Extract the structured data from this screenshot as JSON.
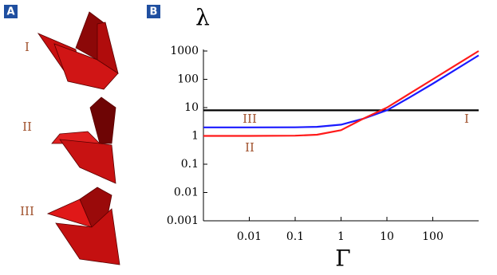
{
  "panels": [
    "A",
    "B"
  ],
  "shape_labels": [
    "I",
    "II",
    "III"
  ],
  "chart_data": {
    "type": "line",
    "xlabel": "Γ",
    "ylabel": "λ",
    "x_log": true,
    "y_log": true,
    "xlim": [
      0.001,
      1000
    ],
    "ylim": [
      0.001,
      1000
    ],
    "xticks": [
      0.01,
      0.1,
      1,
      10,
      100
    ],
    "yticks": [
      0.001,
      0.01,
      0.1,
      1,
      10,
      100,
      1000
    ],
    "x": [
      0.001,
      0.01,
      0.1,
      0.3,
      1,
      3,
      10,
      30,
      100,
      300,
      1000
    ],
    "series": [
      {
        "color": "#000000",
        "values": [
          8,
          8,
          8,
          8,
          8,
          8,
          8,
          8,
          8,
          8,
          8
        ]
      },
      {
        "color": "#1a1aff",
        "values": [
          2,
          2,
          2.02,
          2.1,
          2.5,
          4,
          8,
          22,
          70,
          210,
          700
        ]
      },
      {
        "color": "#ff1a1a",
        "values": [
          1,
          1,
          1.02,
          1.1,
          1.6,
          4,
          10,
          30,
          100,
          300,
          1000
        ]
      }
    ],
    "annotations": [
      "I",
      "II",
      "III"
    ]
  }
}
